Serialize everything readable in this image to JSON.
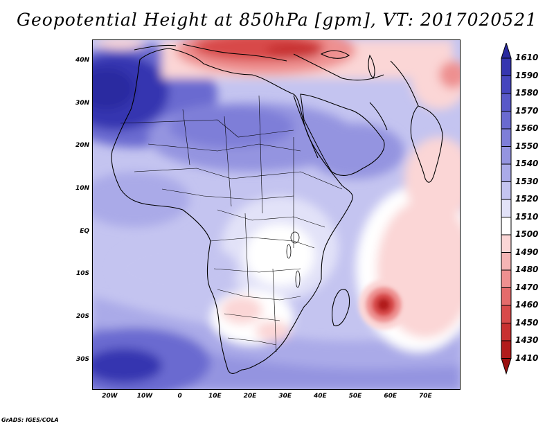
{
  "title": "Geopotential Height at 850hPa [gpm], VT: 2017020521",
  "footer": "GrADS: IGES/COLA",
  "map": {
    "lon_range": [
      -25,
      80
    ],
    "lat_range": [
      -37,
      45
    ],
    "lat_ticks": [
      {
        "value": 40,
        "label": "40N"
      },
      {
        "value": 30,
        "label": "30N"
      },
      {
        "value": 20,
        "label": "20N"
      },
      {
        "value": 10,
        "label": "10N"
      },
      {
        "value": 0,
        "label": "EQ"
      },
      {
        "value": -10,
        "label": "10S"
      },
      {
        "value": -20,
        "label": "20S"
      },
      {
        "value": -30,
        "label": "30S"
      }
    ],
    "lon_ticks": [
      {
        "value": -20,
        "label": "20W"
      },
      {
        "value": -10,
        "label": "10W"
      },
      {
        "value": 0,
        "label": "0"
      },
      {
        "value": 10,
        "label": "10E"
      },
      {
        "value": 20,
        "label": "20E"
      },
      {
        "value": 30,
        "label": "30E"
      },
      {
        "value": 40,
        "label": "40E"
      },
      {
        "value": 50,
        "label": "50E"
      },
      {
        "value": 60,
        "label": "60E"
      },
      {
        "value": 70,
        "label": "70E"
      }
    ]
  },
  "colorbar": {
    "levels": [
      "1610",
      "1590",
      "1580",
      "1570",
      "1560",
      "1550",
      "1540",
      "1530",
      "1520",
      "1510",
      "1500",
      "1490",
      "1480",
      "1470",
      "1460",
      "1450",
      "1430",
      "1410"
    ],
    "colors": [
      "#2a2aa0",
      "#3535b0",
      "#4545be",
      "#5858c8",
      "#6a6ad0",
      "#7e7ed8",
      "#9494e0",
      "#aaaae8",
      "#c4c4f0",
      "#e2e2f8",
      "#ffffff",
      "#fbd6d6",
      "#f5b4b4",
      "#ee9090",
      "#e46b6b",
      "#d84a4a",
      "#c83030",
      "#b21c1c",
      "#9a1010"
    ]
  }
}
